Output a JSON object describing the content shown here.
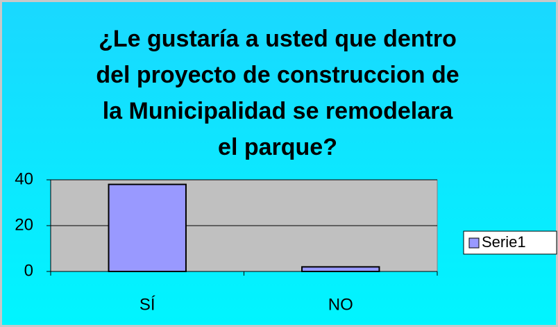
{
  "chart_data": {
    "type": "bar",
    "title": "¿Le gustaría a usted que dentro del proyecto de construccion de la Municipalidad se remodelara el parque?",
    "categories": [
      "SÍ",
      "NO"
    ],
    "series": [
      {
        "name": "Serie1",
        "color": "#9999ff",
        "values": [
          38,
          2
        ]
      }
    ],
    "ylim": [
      0,
      40
    ],
    "yticks": [
      0,
      20,
      40
    ],
    "grid": true,
    "legend": "right"
  }
}
